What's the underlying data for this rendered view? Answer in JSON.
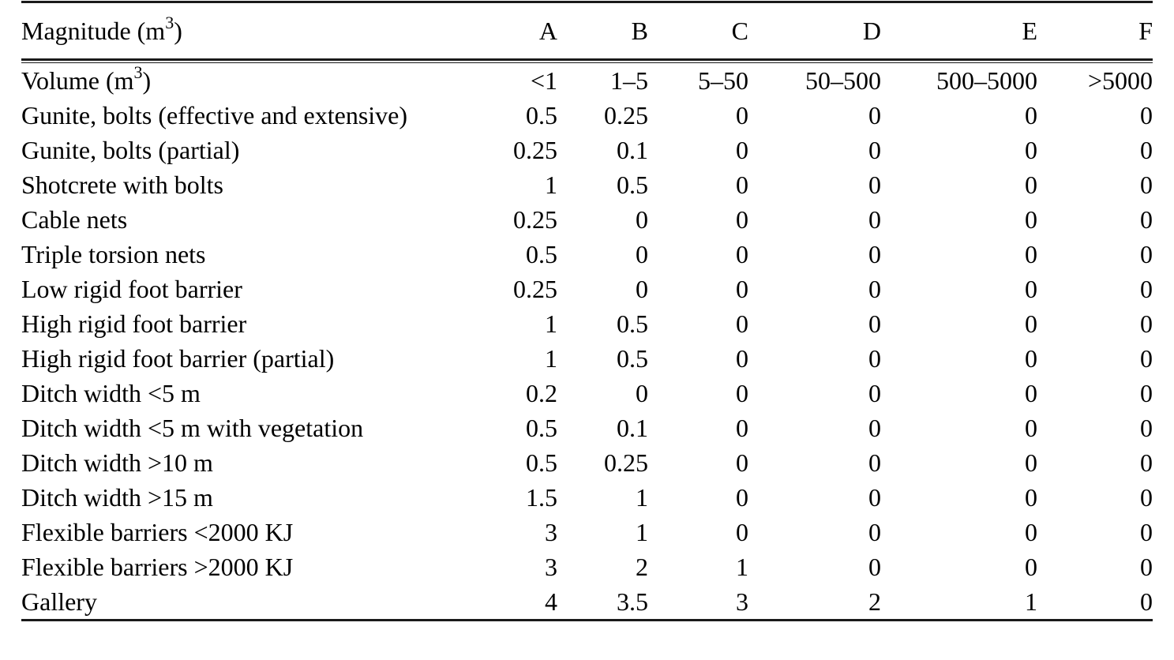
{
  "table": {
    "header": {
      "label": {
        "pre": "Magnitude (m",
        "sup": "3",
        "post": ")"
      },
      "columns": [
        "A",
        "B",
        "C",
        "D",
        "E",
        "F"
      ]
    },
    "rows": [
      {
        "label": {
          "pre": "Volume (m",
          "sup": "3",
          "post": ")"
        },
        "values": [
          "<1",
          "1–5",
          "5–50",
          "50–500",
          "500–5000",
          ">5000"
        ]
      },
      {
        "label": "Gunite, bolts (effective and extensive)",
        "values": [
          "0.5",
          "0.25",
          "0",
          "0",
          "0",
          "0"
        ]
      },
      {
        "label": "Gunite, bolts (partial)",
        "values": [
          "0.25",
          "0.1",
          "0",
          "0",
          "0",
          "0"
        ]
      },
      {
        "label": "Shotcrete with bolts",
        "values": [
          "1",
          "0.5",
          "0",
          "0",
          "0",
          "0"
        ]
      },
      {
        "label": "Cable nets",
        "values": [
          "0.25",
          "0",
          "0",
          "0",
          "0",
          "0"
        ]
      },
      {
        "label": "Triple torsion nets",
        "values": [
          "0.5",
          "0",
          "0",
          "0",
          "0",
          "0"
        ]
      },
      {
        "label": "Low rigid foot barrier",
        "values": [
          "0.25",
          "0",
          "0",
          "0",
          "0",
          "0"
        ]
      },
      {
        "label": "High rigid foot barrier",
        "values": [
          "1",
          "0.5",
          "0",
          "0",
          "0",
          "0"
        ]
      },
      {
        "label": "High rigid foot barrier (partial)",
        "values": [
          "1",
          "0.5",
          "0",
          "0",
          "0",
          "0"
        ]
      },
      {
        "label": "Ditch width <5 m",
        "values": [
          "0.2",
          "0",
          "0",
          "0",
          "0",
          "0"
        ]
      },
      {
        "label": "Ditch width <5 m with vegetation",
        "values": [
          "0.5",
          "0.1",
          "0",
          "0",
          "0",
          "0"
        ]
      },
      {
        "label": "Ditch width >10 m",
        "values": [
          "0.5",
          "0.25",
          "0",
          "0",
          "0",
          "0"
        ]
      },
      {
        "label": "Ditch width >15 m",
        "values": [
          "1.5",
          "1",
          "0",
          "0",
          "0",
          "0"
        ]
      },
      {
        "label": "Flexible barriers <2000 KJ",
        "values": [
          "3",
          "1",
          "0",
          "0",
          "0",
          "0"
        ]
      },
      {
        "label": "Flexible barriers >2000 KJ",
        "values": [
          "3",
          "2",
          "1",
          "0",
          "0",
          "0"
        ]
      },
      {
        "label": "Gallery",
        "values": [
          "4",
          "3.5",
          "3",
          "2",
          "1",
          "0"
        ]
      }
    ]
  },
  "colors": {
    "text": "#000000",
    "rule": "#1a1a1a",
    "background": "#ffffff"
  }
}
